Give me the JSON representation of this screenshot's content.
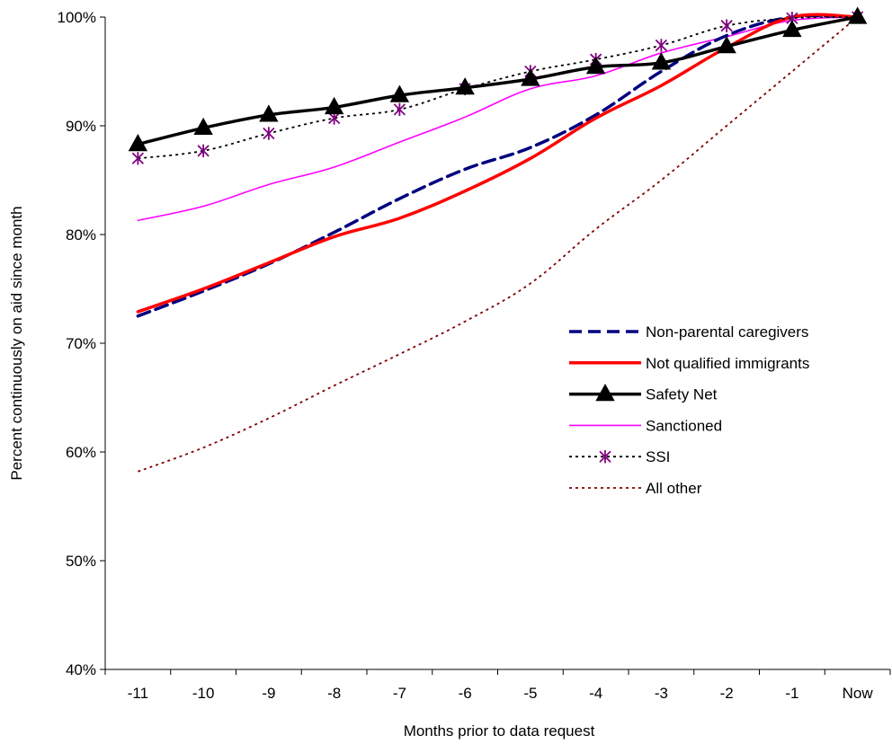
{
  "chart_data": {
    "type": "line",
    "title": "",
    "xlabel": "Months prior to data request",
    "ylabel": "Percent continuously on aid since month",
    "categories": [
      "-11",
      "-10",
      "-9",
      "-8",
      "-7",
      "-6",
      "-5",
      "-4",
      "-3",
      "-2",
      "-1",
      "Now"
    ],
    "ylim": [
      40,
      100
    ],
    "yticks": [
      40,
      50,
      60,
      70,
      80,
      90,
      100
    ],
    "ytick_labels": [
      "40%",
      "50%",
      "60%",
      "70%",
      "80%",
      "90%",
      "100%"
    ],
    "grid": false,
    "legend_position": "right",
    "series": [
      {
        "name": "Non-parental caregivers",
        "color": "#000080",
        "style": "dashed",
        "marker": "none",
        "values": [
          72.5,
          74.8,
          77.3,
          80.2,
          83.3,
          86.0,
          88.0,
          91.0,
          95.0,
          98.3,
          100.0,
          100.0
        ]
      },
      {
        "name": "Not qualified immigrants",
        "color": "#ff0000",
        "style": "solid-thick",
        "marker": "none",
        "values": [
          72.9,
          75.0,
          77.4,
          79.8,
          81.5,
          84.0,
          87.0,
          90.7,
          93.7,
          97.2,
          100.0,
          100.0
        ]
      },
      {
        "name": "Safety Net",
        "color": "#000000",
        "style": "solid-thick",
        "marker": "triangle",
        "values": [
          88.3,
          89.8,
          91.0,
          91.7,
          92.8,
          93.5,
          94.3,
          95.4,
          95.8,
          97.3,
          98.8,
          100.0
        ]
      },
      {
        "name": "Sanctioned",
        "color": "#ff00ff",
        "style": "solid-thin",
        "marker": "none",
        "values": [
          81.3,
          82.6,
          84.6,
          86.2,
          88.5,
          90.8,
          93.4,
          94.6,
          96.7,
          98.2,
          99.7,
          100.0
        ]
      },
      {
        "name": "SSI",
        "color": "#000000",
        "style": "dotted",
        "marker": "asterisk",
        "marker_color": "#800080",
        "values": [
          87.0,
          87.7,
          89.3,
          90.7,
          91.5,
          93.4,
          95.0,
          96.1,
          97.4,
          99.2,
          99.9,
          100.0
        ]
      },
      {
        "name": "All other",
        "color": "#800000",
        "style": "dotted",
        "marker": "none",
        "values": [
          58.2,
          60.4,
          63.1,
          66.1,
          69.0,
          72.0,
          75.5,
          80.5,
          85.0,
          90.0,
          95.0,
          100.0
        ]
      }
    ]
  }
}
